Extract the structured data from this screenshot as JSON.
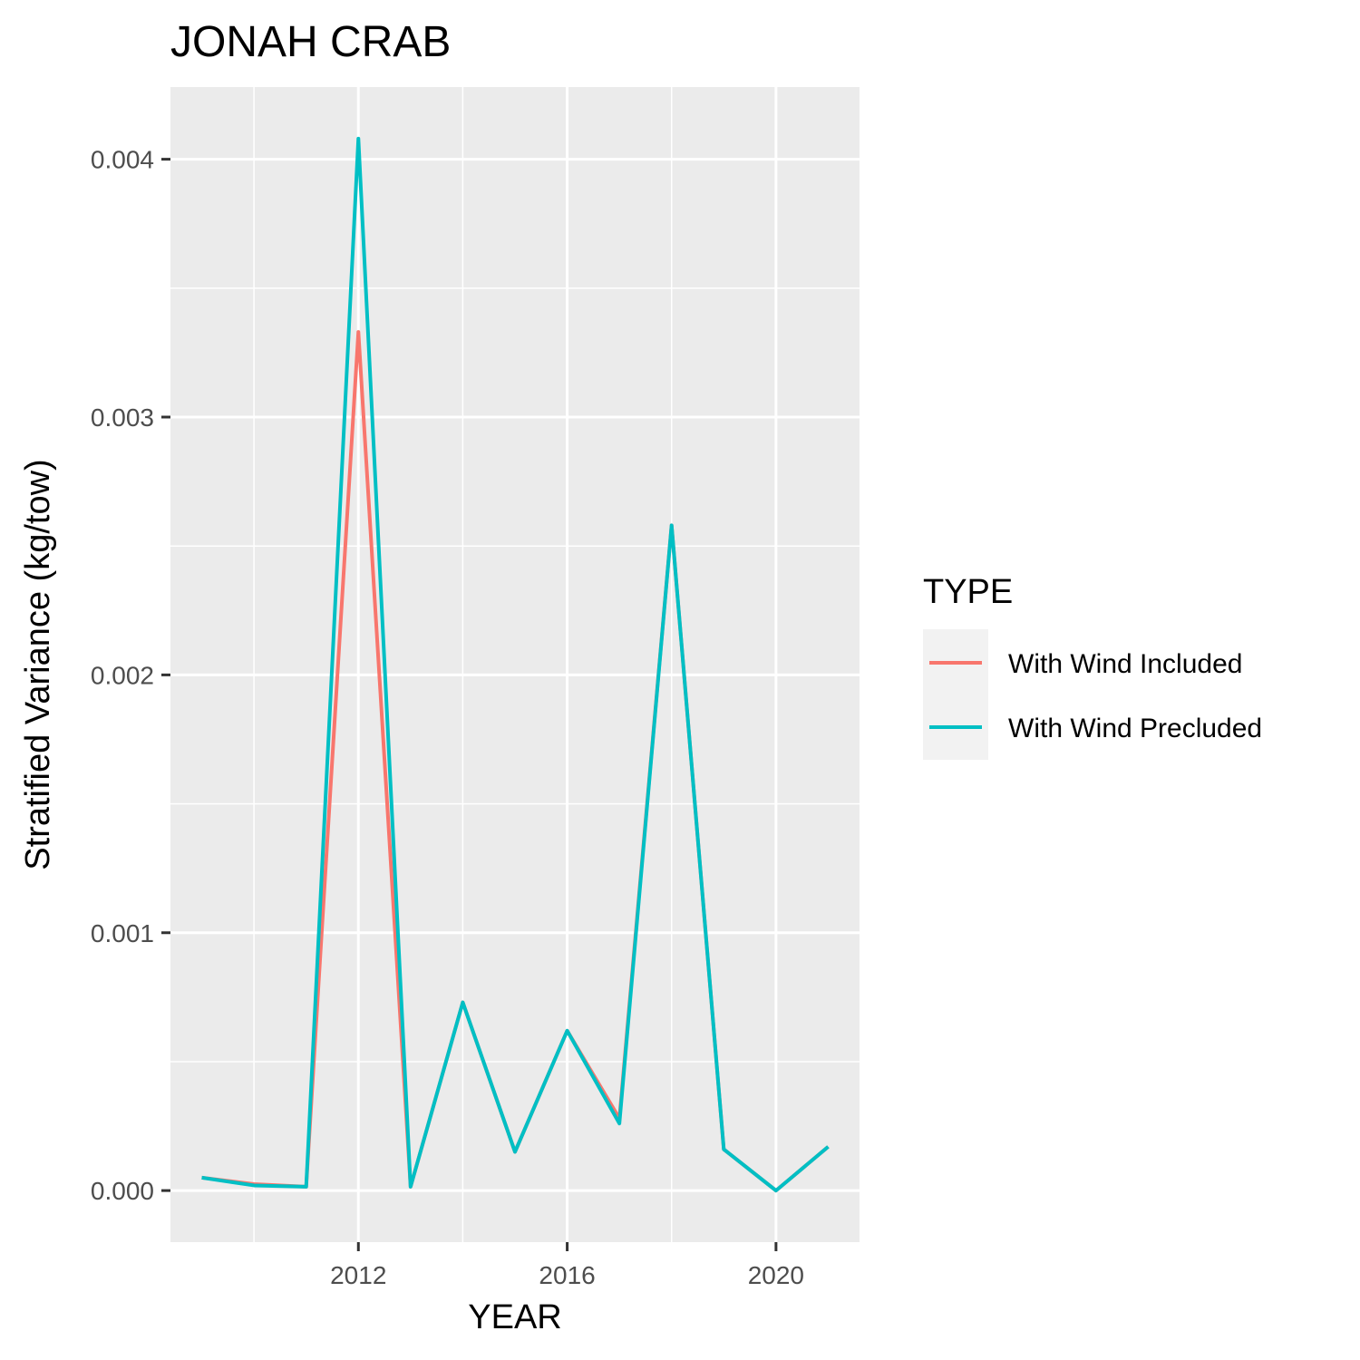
{
  "chart_data": {
    "type": "line",
    "title": "JONAH CRAB",
    "xlabel": "YEAR",
    "ylabel": "Stratified Variance (kg/tow)",
    "x": [
      2009,
      2010,
      2011,
      2012,
      2013,
      2014,
      2015,
      2016,
      2017,
      2018,
      2019,
      2020,
      2021
    ],
    "xlim": [
      2008.4,
      2021.6
    ],
    "ylim": [
      -0.0002,
      0.00428
    ],
    "x_ticks": [
      2012,
      2016,
      2020
    ],
    "x_tick_labels": [
      "2012",
      "2016",
      "2020"
    ],
    "y_ticks": [
      0,
      0.001,
      0.002,
      0.003,
      0.004
    ],
    "y_tick_labels": [
      "0.000",
      "0.001",
      "0.002",
      "0.003",
      "0.004"
    ],
    "grid": true,
    "legend": {
      "title": "TYPE",
      "position": "right"
    },
    "series": [
      {
        "name": "With Wind Included",
        "color": "#F8766D",
        "values": [
          5e-05,
          2.5e-05,
          1.5e-05,
          0.00333,
          1.5e-05,
          0.00073,
          0.00015,
          0.00062,
          0.00028,
          0.00258,
          0.00016,
          0.0,
          0.00017
        ]
      },
      {
        "name": "With Wind Precluded",
        "color": "#00BFC4",
        "values": [
          5e-05,
          2e-05,
          1.5e-05,
          0.00408,
          1.5e-05,
          0.00073,
          0.00015,
          0.00062,
          0.00026,
          0.00258,
          0.00016,
          0.0,
          0.00017
        ]
      }
    ]
  }
}
